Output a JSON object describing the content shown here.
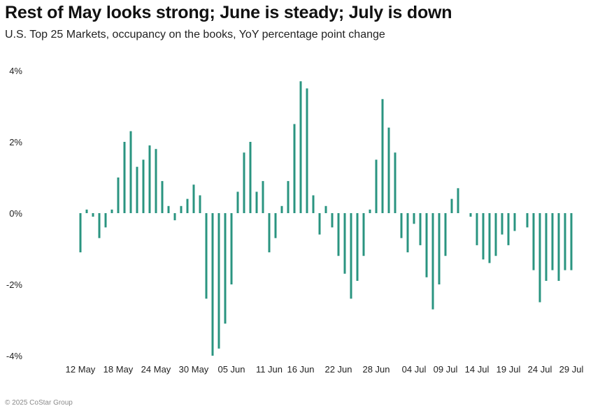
{
  "title": "Rest of May looks strong; June is steady; July is down",
  "subtitle": "U.S. Top 25 Markets, occupancy on the books, YoY percentage point change",
  "footer": "© 2025 CoStar Group",
  "colors": {
    "bar": "#2a9480",
    "text": "#222222"
  },
  "chart_data": {
    "type": "bar",
    "title": "Rest of May looks strong; June is steady; July is down",
    "subtitle": "U.S. Top 25 Markets, occupancy on the books, YoY percentage point change",
    "ylabel": "",
    "xlabel": "",
    "ylim": [
      -4,
      4
    ],
    "yticks": [
      4,
      2,
      0,
      -2,
      -4
    ],
    "ytick_labels": [
      "4%",
      "2%",
      "0%",
      "-2%",
      "-4%"
    ],
    "grid": false,
    "start_date": "12 May",
    "x_tick_labels": [
      {
        "label": "12 May",
        "index": 0
      },
      {
        "label": "18 May",
        "index": 6
      },
      {
        "label": "24 May",
        "index": 12
      },
      {
        "label": "30 May",
        "index": 18
      },
      {
        "label": "05 Jun",
        "index": 24
      },
      {
        "label": "11 Jun",
        "index": 30
      },
      {
        "label": "16 Jun",
        "index": 35
      },
      {
        "label": "22 Jun",
        "index": 41
      },
      {
        "label": "28 Jun",
        "index": 47
      },
      {
        "label": "04 Jul",
        "index": 53
      },
      {
        "label": "09 Jul",
        "index": 58
      },
      {
        "label": "14 Jul",
        "index": 63
      },
      {
        "label": "19 Jul",
        "index": 68
      },
      {
        "label": "24 Jul",
        "index": 73
      },
      {
        "label": "29 Jul",
        "index": 78
      }
    ],
    "values": [
      -1.1,
      0.1,
      -0.1,
      -0.7,
      -0.4,
      0.1,
      1.0,
      2.0,
      2.3,
      1.3,
      1.5,
      1.9,
      1.8,
      0.9,
      0.2,
      -0.2,
      0.2,
      0.4,
      0.8,
      0.5,
      -2.4,
      -4.0,
      -3.8,
      -3.1,
      -2.0,
      0.6,
      1.7,
      2.0,
      0.6,
      0.9,
      -1.1,
      -0.7,
      0.2,
      0.9,
      2.5,
      3.7,
      3.5,
      0.5,
      -0.6,
      0.2,
      -0.4,
      -1.2,
      -1.7,
      -2.4,
      -1.9,
      -1.2,
      0.1,
      1.5,
      3.2,
      2.4,
      1.7,
      -0.7,
      -1.1,
      -0.3,
      -0.9,
      -1.8,
      -2.7,
      -2.0,
      -1.2,
      0.4,
      0.7,
      0.0,
      -0.1,
      -0.9,
      -1.3,
      -1.4,
      -1.2,
      -0.6,
      -0.9,
      -0.5,
      0.0,
      -0.4,
      -1.6,
      -2.5,
      -1.9,
      -1.6,
      -1.9,
      -1.6,
      -1.6
    ]
  }
}
